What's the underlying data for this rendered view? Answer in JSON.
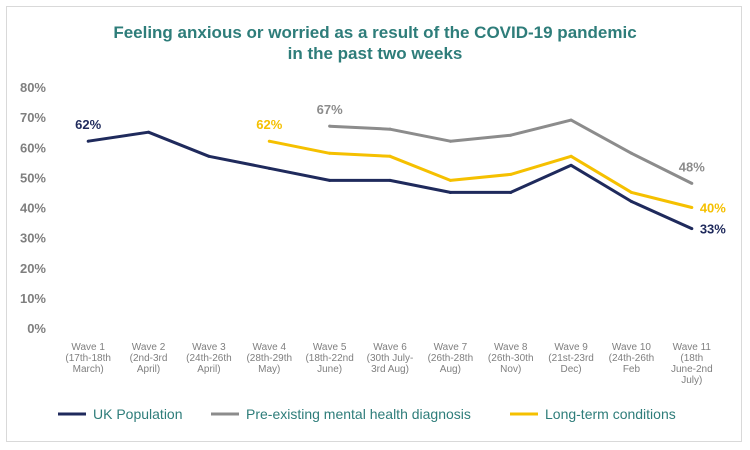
{
  "chart_data": {
    "type": "line",
    "title_line1": "Feeling anxious or worried as a result of the COVID-19 pandemic",
    "title_line2": "in the past two weeks",
    "ylim": [
      0,
      80
    ],
    "yticks": [
      0,
      10,
      20,
      30,
      40,
      50,
      60,
      70,
      80
    ],
    "ytick_labels": [
      "0%",
      "10%",
      "20%",
      "30%",
      "40%",
      "50%",
      "60%",
      "70%",
      "80%"
    ],
    "categories": [
      [
        "Wave 1",
        "(17th-18th",
        "March)"
      ],
      [
        "Wave 2",
        "(2nd-3rd",
        "April)"
      ],
      [
        "Wave 3",
        "(24th-26th",
        "April)"
      ],
      [
        "Wave 4",
        "(28th-29th",
        "May)"
      ],
      [
        "Wave 5",
        "(18th-22nd",
        "June)"
      ],
      [
        "Wave 6",
        "(30th July-",
        "3rd Aug)"
      ],
      [
        "Wave 7",
        "(26th-28th",
        "Aug)"
      ],
      [
        "Wave 8",
        "(26th-30th",
        "Nov)"
      ],
      [
        "Wave 9",
        "(21st-23rd",
        "Dec)"
      ],
      [
        "Wave 10",
        "(24th-26th",
        "Feb"
      ],
      [
        "Wave 11",
        "(18th",
        "June-2nd",
        "July)"
      ]
    ],
    "grid": false,
    "legend_position": "bottom",
    "series": [
      {
        "name": "UK Population",
        "color": "#1f2a5c",
        "values": [
          62,
          65,
          57,
          53,
          49,
          49,
          45,
          45,
          54,
          42,
          33
        ],
        "labels": [
          {
            "index": 0,
            "text": "62%",
            "pos": "above"
          },
          {
            "index": 10,
            "text": "33%",
            "pos": "right"
          }
        ]
      },
      {
        "name": "Pre-existing mental health diagnosis",
        "color": "#8c8c8c",
        "values": [
          null,
          null,
          null,
          null,
          67,
          66,
          62,
          64,
          69,
          58,
          48
        ],
        "labels": [
          {
            "index": 4,
            "text": "67%",
            "pos": "above"
          },
          {
            "index": 10,
            "text": "48%",
            "pos": "above"
          }
        ]
      },
      {
        "name": "Long-term conditions",
        "color": "#f5c000",
        "values": [
          null,
          null,
          null,
          62,
          58,
          57,
          49,
          51,
          57,
          45,
          40
        ],
        "labels": [
          {
            "index": 3,
            "text": "62%",
            "pos": "above"
          },
          {
            "index": 10,
            "text": "40%",
            "pos": "right"
          }
        ]
      }
    ]
  }
}
